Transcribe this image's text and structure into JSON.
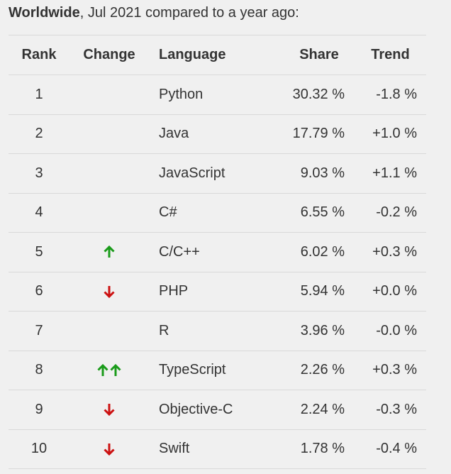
{
  "caption": {
    "bold": "Worldwide",
    "rest": ", Jul 2021 compared to a year ago:"
  },
  "table": {
    "headers": {
      "rank": "Rank",
      "change": "Change",
      "language": "Language",
      "share": "Share",
      "trend": "Trend"
    },
    "rows": [
      {
        "rank": "1",
        "change": "",
        "language": "Python",
        "share": "30.32 %",
        "trend": "-1.8 %"
      },
      {
        "rank": "2",
        "change": "",
        "language": "Java",
        "share": "17.79 %",
        "trend": "+1.0 %"
      },
      {
        "rank": "3",
        "change": "",
        "language": "JavaScript",
        "share": "9.03 %",
        "trend": "+1.1 %"
      },
      {
        "rank": "4",
        "change": "",
        "language": "C#",
        "share": "6.55 %",
        "trend": "-0.2 %"
      },
      {
        "rank": "5",
        "change": "up",
        "language": "C/C++",
        "share": "6.02 %",
        "trend": "+0.3 %"
      },
      {
        "rank": "6",
        "change": "down",
        "language": "PHP",
        "share": "5.94 %",
        "trend": "+0.0 %"
      },
      {
        "rank": "7",
        "change": "",
        "language": "R",
        "share": "3.96 %",
        "trend": "-0.0 %"
      },
      {
        "rank": "8",
        "change": "up-up",
        "language": "TypeScript",
        "share": "2.26 %",
        "trend": "+0.3 %"
      },
      {
        "rank": "9",
        "change": "down",
        "language": "Objective-C",
        "share": "2.24 %",
        "trend": "-0.3 %"
      },
      {
        "rank": "10",
        "change": "down",
        "language": "Swift",
        "share": "1.78 %",
        "trend": "-0.4 %"
      }
    ]
  },
  "colors": {
    "up_arrow": "#1a9b1a",
    "down_arrow": "#cc1111",
    "text": "#333333",
    "divider": "#d9d9d9",
    "background": "#f0f0f0"
  }
}
